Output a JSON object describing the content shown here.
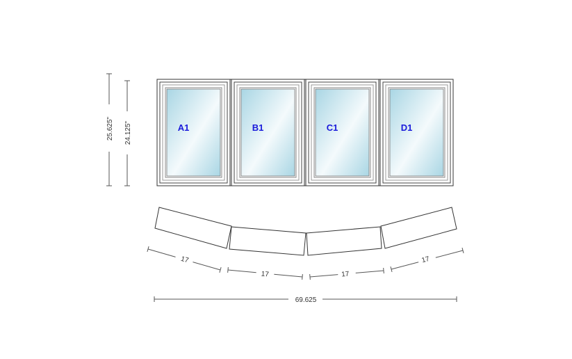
{
  "elevation": {
    "overall_height_label": "25.625\"",
    "sash_height_label": "24.125\"",
    "units": [
      {
        "label": "A1"
      },
      {
        "label": "B1"
      },
      {
        "label": "C1"
      },
      {
        "label": "D1"
      }
    ],
    "glass_color_dark": "#a9d6e4",
    "glass_color_light": "#ffffff",
    "label_color": "#1a1adb"
  },
  "plan": {
    "segment_labels": [
      "17",
      "17",
      "17",
      "17"
    ],
    "overall_width_label": "69.625"
  }
}
